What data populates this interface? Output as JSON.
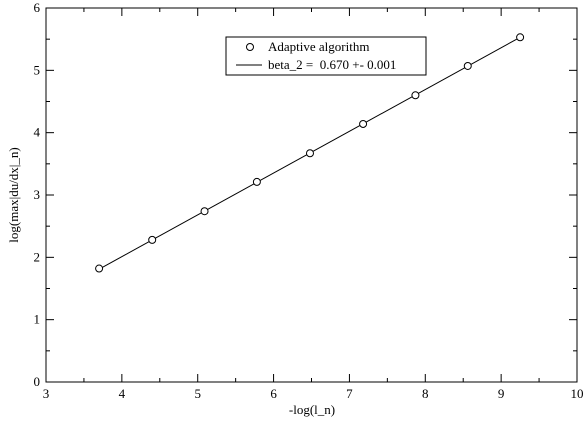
{
  "chart_data": {
    "type": "scatter",
    "title": "",
    "xlabel": "-log(l_n)",
    "ylabel": "log(max|du/dx|_n)",
    "xlim": [
      3,
      10
    ],
    "ylim": [
      0,
      6
    ],
    "x_ticks": [
      "3",
      "4",
      "5",
      "6",
      "7",
      "8",
      "9",
      "10"
    ],
    "y_ticks": [
      "0",
      "1",
      "2",
      "3",
      "4",
      "5",
      "6"
    ],
    "grid": false,
    "legend_position": "top-right",
    "series": [
      {
        "name": "Adaptive algorithm",
        "kind": "scatter",
        "marker": "open-circle",
        "x": [
          3.7,
          4.4,
          5.09,
          5.78,
          6.48,
          7.18,
          7.87,
          8.56,
          9.25
        ],
        "y": [
          1.82,
          2.28,
          2.74,
          3.21,
          3.67,
          4.14,
          4.6,
          5.07,
          5.53
        ]
      },
      {
        "name": "beta_2 =  0.670 +- 0.001",
        "kind": "line",
        "x": [
          3.7,
          9.25
        ],
        "y": [
          1.81,
          5.53
        ]
      }
    ]
  }
}
